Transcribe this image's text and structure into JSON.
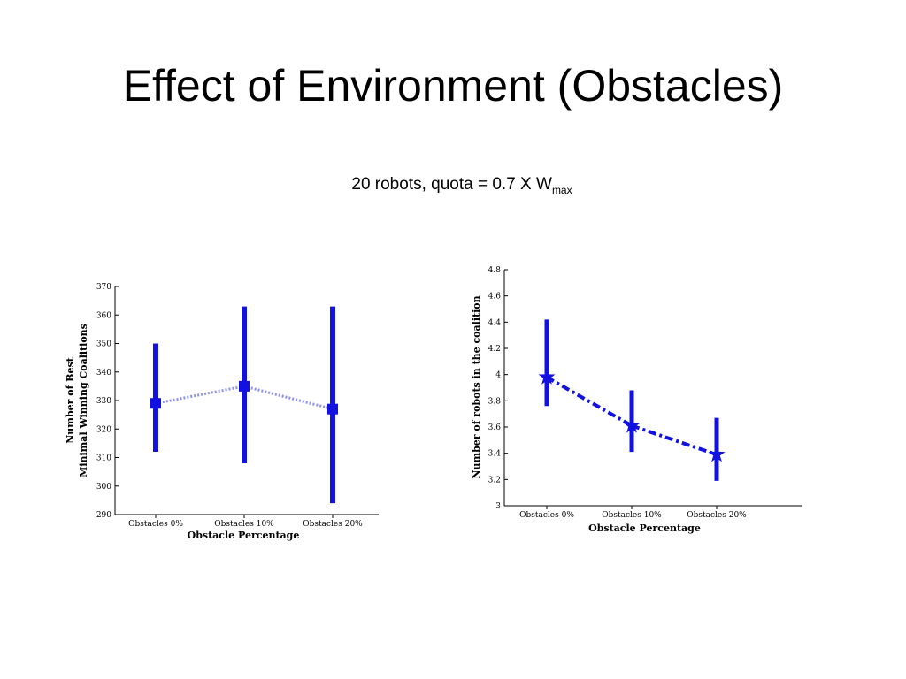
{
  "slide": {
    "title": "Effect of Environment (Obstacles)",
    "subtitle_main": "20 robots, quota = 0.7 X W",
    "subtitle_sub": "max"
  },
  "colors": {
    "series": "#1212e0",
    "connector_left": "#8f93f0",
    "axis": "#000000"
  },
  "chart_data": [
    {
      "type": "line",
      "categories": [
        "Obstacles 0%",
        "Obstacles 10%",
        "Obstacles 20%"
      ],
      "series": [
        {
          "values": [
            329,
            335,
            327
          ],
          "err_low": [
            312,
            308,
            294
          ],
          "err_high": [
            350,
            363,
            363
          ],
          "marker": "square",
          "line_style": "dotted"
        }
      ],
      "xlabel": "Obstacle Percentage",
      "ylabel_lines": [
        "Number of Best",
        "Minimal Winning Coalitions"
      ],
      "ylim": [
        290,
        370
      ],
      "yticks": [
        290,
        300,
        310,
        320,
        330,
        340,
        350,
        360,
        370
      ],
      "grid": false
    },
    {
      "type": "line",
      "categories": [
        "Obstacles 0%",
        "Obstacles 10%",
        "Obstacles 20%"
      ],
      "series": [
        {
          "values": [
            3.98,
            3.61,
            3.39
          ],
          "err_low": [
            3.76,
            3.41,
            3.19
          ],
          "err_high": [
            4.42,
            3.88,
            3.67
          ],
          "marker": "star",
          "line_style": "dash-dot"
        }
      ],
      "xlabel": "Obstacle Percentage",
      "ylabel_lines": [
        "Number of robots in the coalition"
      ],
      "ylim": [
        3,
        4.8
      ],
      "yticks": [
        "3",
        "3.2",
        "3.4",
        "3.6",
        "3.8",
        "4",
        "4.2",
        "4.4",
        "4.6",
        "4.8"
      ],
      "grid": false
    }
  ]
}
